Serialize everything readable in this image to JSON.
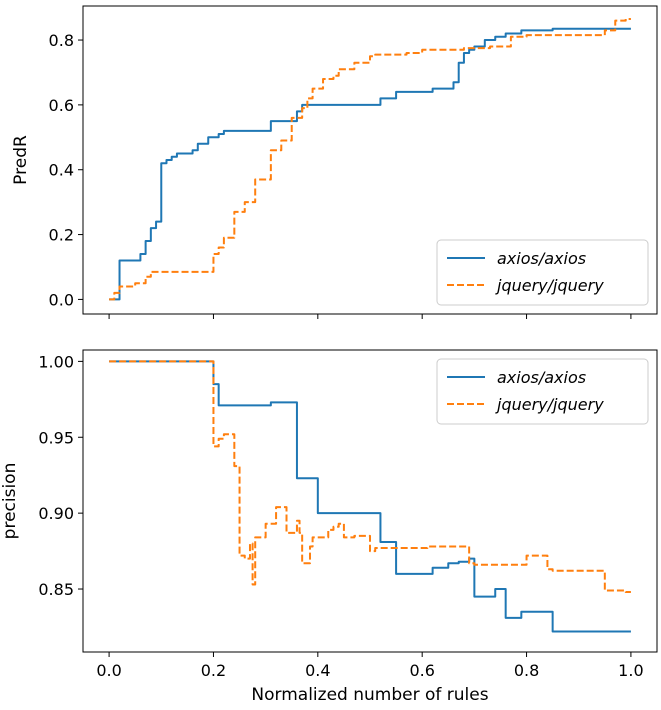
{
  "chart_data": [
    {
      "type": "line",
      "ylabel": "PredR",
      "xlim": [
        -0.05,
        1.05
      ],
      "ylim": [
        -0.045,
        0.905
      ],
      "xticks": [
        "0.0",
        "0.2",
        "0.4",
        "0.6",
        "0.8",
        "1.0"
      ],
      "yticks": [
        "0.0",
        "0.2",
        "0.4",
        "0.6",
        "0.8"
      ],
      "show_xtick_labels": false,
      "legend": "lower-right",
      "series": [
        {
          "name": "axios/axios",
          "color": "#1f77b4",
          "dash": "solid",
          "x": [
            0.0,
            0.02,
            0.02,
            0.06,
            0.06,
            0.07,
            0.07,
            0.08,
            0.08,
            0.09,
            0.09,
            0.1,
            0.1,
            0.11,
            0.11,
            0.12,
            0.12,
            0.13,
            0.13,
            0.16,
            0.16,
            0.17,
            0.17,
            0.19,
            0.19,
            0.21,
            0.21,
            0.22,
            0.22,
            0.24,
            0.24,
            0.31,
            0.31,
            0.36,
            0.36,
            0.37,
            0.37,
            0.52,
            0.52,
            0.55,
            0.55,
            0.62,
            0.62,
            0.66,
            0.66,
            0.67,
            0.67,
            0.68,
            0.68,
            0.69,
            0.69,
            0.7,
            0.7,
            0.72,
            0.72,
            0.74,
            0.74,
            0.76,
            0.76,
            0.79,
            0.79,
            0.85,
            0.85,
            1.0
          ],
          "y": [
            0.0,
            0.0,
            0.12,
            0.12,
            0.14,
            0.14,
            0.18,
            0.18,
            0.22,
            0.22,
            0.24,
            0.24,
            0.42,
            0.42,
            0.43,
            0.43,
            0.44,
            0.44,
            0.45,
            0.45,
            0.46,
            0.46,
            0.48,
            0.48,
            0.5,
            0.5,
            0.51,
            0.51,
            0.52,
            0.52,
            0.52,
            0.52,
            0.55,
            0.55,
            0.58,
            0.58,
            0.6,
            0.6,
            0.62,
            0.62,
            0.64,
            0.64,
            0.65,
            0.65,
            0.67,
            0.67,
            0.73,
            0.73,
            0.76,
            0.76,
            0.77,
            0.77,
            0.78,
            0.78,
            0.8,
            0.8,
            0.81,
            0.81,
            0.82,
            0.82,
            0.83,
            0.83,
            0.835,
            0.835
          ]
        },
        {
          "name": "jquery/jquery",
          "color": "#ff7f0e",
          "dash": "dashed",
          "x": [
            0.0,
            0.01,
            0.01,
            0.02,
            0.02,
            0.05,
            0.05,
            0.07,
            0.07,
            0.08,
            0.08,
            0.2,
            0.2,
            0.21,
            0.21,
            0.22,
            0.22,
            0.24,
            0.24,
            0.26,
            0.26,
            0.28,
            0.28,
            0.31,
            0.31,
            0.33,
            0.33,
            0.35,
            0.35,
            0.37,
            0.37,
            0.38,
            0.38,
            0.39,
            0.39,
            0.41,
            0.41,
            0.43,
            0.43,
            0.44,
            0.44,
            0.47,
            0.47,
            0.5,
            0.5,
            0.51,
            0.51,
            0.57,
            0.57,
            0.6,
            0.6,
            0.68,
            0.68,
            0.73,
            0.73,
            0.77,
            0.77,
            0.8,
            0.8,
            0.95,
            0.95,
            0.97,
            0.97,
            0.99,
            0.99,
            1.0
          ],
          "y": [
            0.0,
            0.0,
            0.02,
            0.02,
            0.04,
            0.04,
            0.05,
            0.05,
            0.07,
            0.07,
            0.085,
            0.085,
            0.14,
            0.14,
            0.16,
            0.16,
            0.19,
            0.19,
            0.27,
            0.27,
            0.3,
            0.3,
            0.37,
            0.37,
            0.46,
            0.46,
            0.49,
            0.49,
            0.56,
            0.56,
            0.59,
            0.59,
            0.62,
            0.62,
            0.65,
            0.65,
            0.68,
            0.68,
            0.69,
            0.69,
            0.71,
            0.71,
            0.73,
            0.73,
            0.75,
            0.75,
            0.755,
            0.755,
            0.76,
            0.76,
            0.77,
            0.77,
            0.775,
            0.775,
            0.78,
            0.78,
            0.81,
            0.81,
            0.815,
            0.815,
            0.83,
            0.83,
            0.86,
            0.86,
            0.865,
            0.865
          ]
        }
      ]
    },
    {
      "type": "line",
      "ylabel": "precision",
      "xlabel": "Normalized number of rules",
      "xlim": [
        -0.05,
        1.05
      ],
      "ylim": [
        0.8085,
        1.0075
      ],
      "xticks": [
        "0.0",
        "0.2",
        "0.4",
        "0.6",
        "0.8",
        "1.0"
      ],
      "yticks": [
        "0.85",
        "0.90",
        "0.95",
        "1.00"
      ],
      "show_xtick_labels": true,
      "legend": "upper-right",
      "series": [
        {
          "name": "axios/axios",
          "color": "#1f77b4",
          "dash": "solid",
          "x": [
            0.0,
            0.2,
            0.2,
            0.21,
            0.21,
            0.31,
            0.31,
            0.36,
            0.36,
            0.37,
            0.37,
            0.4,
            0.4,
            0.52,
            0.52,
            0.55,
            0.55,
            0.62,
            0.62,
            0.65,
            0.65,
            0.67,
            0.67,
            0.69,
            0.69,
            0.7,
            0.7,
            0.74,
            0.74,
            0.76,
            0.76,
            0.79,
            0.79,
            0.85,
            0.85,
            1.0
          ],
          "y": [
            1.0,
            1.0,
            0.985,
            0.985,
            0.971,
            0.971,
            0.973,
            0.973,
            0.923,
            0.923,
            0.923,
            0.923,
            0.9,
            0.9,
            0.881,
            0.881,
            0.86,
            0.86,
            0.864,
            0.864,
            0.867,
            0.867,
            0.868,
            0.868,
            0.87,
            0.87,
            0.845,
            0.845,
            0.85,
            0.85,
            0.831,
            0.831,
            0.835,
            0.835,
            0.822,
            0.822
          ]
        },
        {
          "name": "jquery/jquery",
          "color": "#ff7f0e",
          "dash": "dashed",
          "x": [
            0.0,
            0.2,
            0.2,
            0.21,
            0.21,
            0.22,
            0.22,
            0.24,
            0.24,
            0.25,
            0.25,
            0.26,
            0.26,
            0.27,
            0.27,
            0.275,
            0.275,
            0.28,
            0.28,
            0.3,
            0.3,
            0.32,
            0.32,
            0.34,
            0.34,
            0.36,
            0.36,
            0.365,
            0.365,
            0.37,
            0.37,
            0.385,
            0.385,
            0.39,
            0.39,
            0.42,
            0.42,
            0.43,
            0.43,
            0.44,
            0.44,
            0.45,
            0.45,
            0.47,
            0.47,
            0.5,
            0.5,
            0.51,
            0.51,
            0.61,
            0.61,
            0.69,
            0.69,
            0.7,
            0.7,
            0.8,
            0.8,
            0.84,
            0.84,
            0.85,
            0.85,
            0.95,
            0.95,
            0.99,
            0.99,
            1.0
          ],
          "y": [
            1.0,
            1.0,
            0.944,
            0.944,
            0.949,
            0.949,
            0.952,
            0.952,
            0.931,
            0.931,
            0.872,
            0.872,
            0.87,
            0.87,
            0.88,
            0.88,
            0.853,
            0.853,
            0.884,
            0.884,
            0.893,
            0.893,
            0.904,
            0.904,
            0.887,
            0.887,
            0.895,
            0.895,
            0.887,
            0.887,
            0.867,
            0.867,
            0.878,
            0.878,
            0.884,
            0.884,
            0.889,
            0.889,
            0.891,
            0.891,
            0.893,
            0.893,
            0.884,
            0.884,
            0.885,
            0.885,
            0.875,
            0.875,
            0.877,
            0.877,
            0.878,
            0.878,
            0.867,
            0.867,
            0.866,
            0.866,
            0.872,
            0.872,
            0.863,
            0.863,
            0.862,
            0.862,
            0.849,
            0.849,
            0.848,
            0.848
          ]
        }
      ]
    }
  ]
}
